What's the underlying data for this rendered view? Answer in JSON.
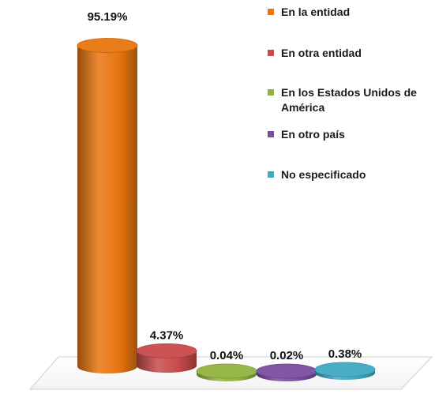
{
  "chart_data": {
    "type": "bar",
    "categories": [
      "En la entidad",
      "En otra entidad",
      "En los Estados Unidos de América",
      "En otro  país",
      "No especificado"
    ],
    "values": [
      95.19,
      4.37,
      0.04,
      0.02,
      0.38
    ],
    "data_labels": [
      "95.19%",
      "4.37%",
      "0.04%",
      "0.02%",
      "0.38%"
    ],
    "unit": "%",
    "ylim": [
      0,
      100
    ],
    "legend_position": "top-right",
    "grid": false,
    "colors": [
      "#E8750F",
      "#C84A4A",
      "#93B33F",
      "#7A4E9E",
      "#3FA9C3"
    ],
    "shape": "cylinder-3d"
  }
}
